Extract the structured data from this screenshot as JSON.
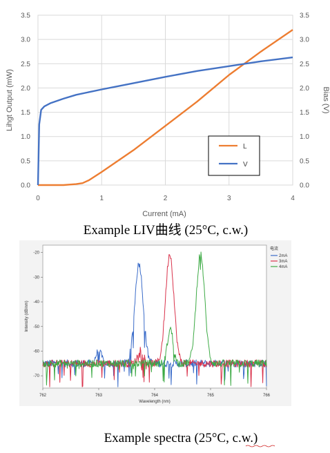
{
  "colors": {
    "L": "#ED7D31",
    "V": "#4472C4",
    "s2": "#3B6CC9",
    "s3": "#D9314A",
    "s4": "#3DAA45"
  },
  "chart_data": [
    {
      "type": "line",
      "xlabel": "Current (mA)",
      "ylabel": "Lihgt Output (mW)",
      "y2label": "Bias (V)",
      "caption": "Example LIV曲线 (25°C, c.w.)",
      "xlim": [
        0,
        4
      ],
      "ylim": [
        0,
        3.5
      ],
      "y2lim": [
        0,
        3.5
      ],
      "xticks": [
        "0",
        "1",
        "2",
        "3",
        "4"
      ],
      "yticks": [
        "0.0",
        "0.5",
        "1.0",
        "1.5",
        "2.0",
        "2.5",
        "3.0",
        "3.5"
      ],
      "legend_position": "bottom-right",
      "grid": true,
      "series": [
        {
          "name": "L",
          "axis": "left",
          "x": [
            0,
            0.4,
            0.6,
            0.7,
            0.8,
            1.0,
            1.5,
            2.0,
            2.5,
            3.0,
            3.5,
            4.0
          ],
          "y": [
            0,
            0,
            0.02,
            0.04,
            0.1,
            0.27,
            0.72,
            1.22,
            1.72,
            2.27,
            2.75,
            3.2
          ]
        },
        {
          "name": "V",
          "axis": "right",
          "x": [
            0,
            0.02,
            0.05,
            0.1,
            0.2,
            0.4,
            0.6,
            1.0,
            1.5,
            2.0,
            2.5,
            3.0,
            3.5,
            4.0
          ],
          "y": [
            0,
            1.25,
            1.55,
            1.62,
            1.69,
            1.78,
            1.86,
            1.97,
            2.1,
            2.23,
            2.35,
            2.45,
            2.55,
            2.63
          ]
        }
      ]
    },
    {
      "type": "line",
      "xlabel": "Wavelength (nm)",
      "ylabel": "Intensity (dB/nm)",
      "caption": "Example spectra (25°C, c.w.)",
      "legend_title": "电流",
      "xlim": [
        762,
        766
      ],
      "ylim": [
        -75,
        -17
      ],
      "xticks": [
        "762",
        "763",
        "764",
        "765",
        "766"
      ],
      "yticks": [
        "-20",
        "-30",
        "-40",
        "-50",
        "-60",
        "-70"
      ],
      "noise_floor": -65,
      "series": [
        {
          "name": "2mA",
          "main_peak": [
            763.72,
            -24.5
          ],
          "side_peak": [
            763.0,
            -60
          ]
        },
        {
          "name": "3mA",
          "main_peak": [
            764.27,
            -20.5
          ],
          "side_peak": [
            763.75,
            -59
          ]
        },
        {
          "name": "4mA",
          "main_peak": [
            764.82,
            -20.5
          ],
          "side_peak": [
            764.28,
            -51
          ]
        }
      ]
    }
  ]
}
